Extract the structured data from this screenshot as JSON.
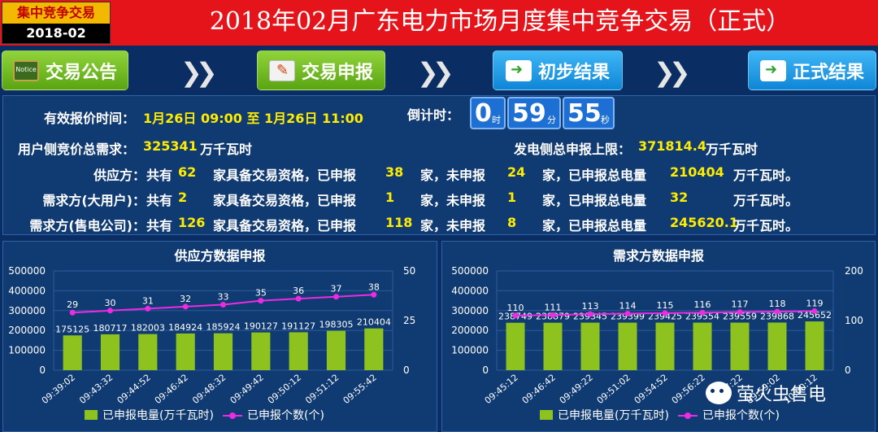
{
  "header": {
    "badge_title": "集中竞争交易",
    "badge_date": "2018-02",
    "title": "2018年02月广东电力市场月度集中竞争交易（正式）"
  },
  "nav": {
    "announcement": "交易公告",
    "announcement_icon_text": "Notice",
    "declare": "交易申报",
    "preliminary": "初步结果",
    "final": "正式结果",
    "arrow": "❯❯"
  },
  "info": {
    "time_label": "有效报价时间：",
    "time_value": "1月26日 09:00 至 1月26日 11:00",
    "countdown_label": "倒计时：",
    "countdown": [
      {
        "value": "0",
        "unit": "时"
      },
      {
        "value": "59",
        "unit": "分"
      },
      {
        "value": "55",
        "unit": "秒"
      }
    ],
    "demand_label": "用户侧竞价总需求：",
    "demand_value": "325341",
    "demand_unit": "万千瓦时",
    "gen_label": "发电侧总申报上限：",
    "gen_value": "371814.4",
    "gen_unit": "万千瓦时",
    "rows": [
      {
        "label": "供应方：",
        "total": "62",
        "declared": "38",
        "undeclared": "24",
        "energy": "210404",
        "energy_unit": "万千瓦时。"
      },
      {
        "label": "需求方(大用户)：",
        "total": "2",
        "declared": "1",
        "undeclared": "1",
        "energy": "32",
        "energy_unit": "万千瓦时。"
      },
      {
        "label": "需求方(售电公司)：",
        "total": "126",
        "declared": "118",
        "undeclared": "8",
        "energy": "245620.1",
        "energy_unit": "万千瓦时。"
      }
    ],
    "txt_total": "共有",
    "txt_qualified": "家具备交易资格，已申报",
    "txt_jia_not": "家，未申报",
    "txt_jia_total": "家，已申报总电量"
  },
  "chart_data": [
    {
      "type": "bar",
      "title": "供应方数据申报",
      "categories": [
        "09:39:02",
        "09:43:32",
        "09:44:52",
        "09:46:42",
        "09:48:32",
        "09:49:42",
        "09:50:12",
        "09:51:12",
        "09:55:42"
      ],
      "series": [
        {
          "name": "已申报电量(万千瓦时)",
          "type": "bar",
          "axis": "left",
          "color": "#8dc21f",
          "values": [
            175125,
            180717,
            182003,
            184924,
            185924,
            190127,
            191127,
            198305,
            210404
          ]
        },
        {
          "name": "已申报个数(个)",
          "type": "line",
          "axis": "right",
          "color": "#ee2ae2",
          "values": [
            29,
            30,
            31,
            32,
            33,
            35,
            36,
            37,
            38
          ]
        }
      ],
      "ylim_left": [
        0,
        500000
      ],
      "yticks_left": [
        "0",
        "100000",
        "200000",
        "300000",
        "400000",
        "500000"
      ],
      "ylim_right": [
        0,
        50
      ],
      "yticks_right": [
        "0",
        "25",
        "50"
      ],
      "legend_position": "bottom"
    },
    {
      "type": "bar",
      "title": "需求方数据申报",
      "categories": [
        "09:45:12",
        "09:46:42",
        "09:49:22",
        "09:51:02",
        "09:54:52",
        "09:56:22",
        "09:57:22",
        "09:59:02",
        "10:00:12"
      ],
      "series": [
        {
          "name": "已申报电量(万千瓦时)",
          "type": "bar",
          "axis": "left",
          "color": "#8dc21f",
          "values": [
            238749,
            238879,
            239345,
            239399,
            239425,
            239554,
            239559,
            239868,
            245652
          ]
        },
        {
          "name": "已申报个数(个)",
          "type": "line",
          "axis": "right",
          "color": "#ee2ae2",
          "values": [
            110,
            111,
            113,
            114,
            115,
            116,
            117,
            118,
            119
          ]
        }
      ],
      "ylim_left": [
        0,
        500000
      ],
      "yticks_left": [
        "0",
        "100000",
        "200000",
        "300000",
        "400000",
        "500000"
      ],
      "ylim_right": [
        0,
        200
      ],
      "yticks_right": [
        "0",
        "100",
        "200"
      ],
      "legend_position": "bottom"
    }
  ],
  "watermark": {
    "text": "萤火虫售电"
  }
}
